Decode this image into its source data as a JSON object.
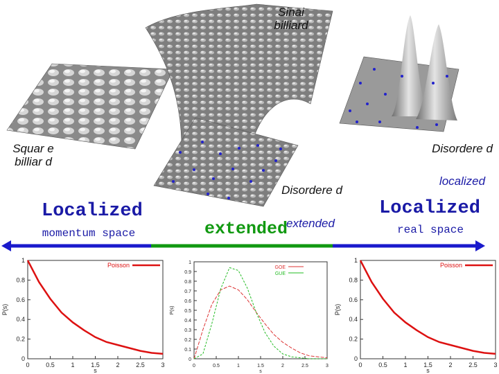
{
  "labels": {
    "sinai": "Sinai billiard",
    "square": "Squar e billiar d",
    "disordered_right": "Disordere d",
    "localized_right_italic": "localized",
    "disordered_center": "Disordere d",
    "extended_center_italic": "extended",
    "localized_left": "Localized",
    "momentum_space": "momentum space",
    "extended_big": "extended",
    "localized_right": "Localized",
    "real_space": "real space"
  },
  "chart_data": [
    {
      "type": "line",
      "xlabel": "s",
      "ylabel": "P(s)",
      "xlim": [
        0,
        3
      ],
      "ylim": [
        0,
        1
      ],
      "xticks": [
        "0",
        "0.5",
        "1",
        "1.5",
        "2",
        "2.5",
        "3"
      ],
      "yticks": [
        "0",
        "0.2",
        "0.4",
        "0.6",
        "0.8",
        "1"
      ],
      "legend": [
        "Poisson"
      ],
      "series": [
        {
          "name": "Poisson",
          "color": "#dd1111",
          "x": [
            0,
            0.25,
            0.5,
            0.75,
            1,
            1.25,
            1.5,
            1.75,
            2,
            2.25,
            2.5,
            2.75,
            3
          ],
          "y": [
            1,
            0.78,
            0.61,
            0.47,
            0.37,
            0.29,
            0.22,
            0.17,
            0.14,
            0.11,
            0.08,
            0.06,
            0.05
          ]
        }
      ]
    },
    {
      "type": "line",
      "xlabel": "s",
      "ylabel": "P(s)",
      "xlim": [
        0,
        3
      ],
      "ylim": [
        0,
        1
      ],
      "xticks": [
        "0",
        "0.5",
        "1",
        "1.5",
        "2",
        "2.5",
        "3"
      ],
      "yticks": [
        "0",
        "0.1",
        "0.2",
        "0.3",
        "0.4",
        "0.5",
        "0.6",
        "0.7",
        "0.8",
        "0.9",
        "1"
      ],
      "legend": [
        "GOE",
        "GUE"
      ],
      "series": [
        {
          "name": "GOE",
          "color": "#dd3333",
          "x": [
            0,
            0.2,
            0.4,
            0.6,
            0.8,
            1,
            1.2,
            1.4,
            1.6,
            1.8,
            2,
            2.2,
            2.4,
            2.6,
            2.8,
            3
          ],
          "y": [
            0,
            0.3,
            0.56,
            0.71,
            0.75,
            0.71,
            0.61,
            0.48,
            0.36,
            0.25,
            0.17,
            0.11,
            0.06,
            0.03,
            0.02,
            0.01
          ]
        },
        {
          "name": "GUE",
          "color": "#22bb22",
          "x": [
            0,
            0.2,
            0.4,
            0.6,
            0.8,
            1,
            1.2,
            1.4,
            1.6,
            1.8,
            2,
            2.2,
            2.4,
            2.6,
            2.8,
            3
          ],
          "y": [
            0,
            0.05,
            0.36,
            0.72,
            0.94,
            0.91,
            0.73,
            0.48,
            0.27,
            0.13,
            0.05,
            0.02,
            0.01,
            0,
            0,
            0
          ]
        }
      ]
    },
    {
      "type": "line",
      "xlabel": "s",
      "ylabel": "P(s)",
      "xlim": [
        0,
        3
      ],
      "ylim": [
        0,
        1
      ],
      "xticks": [
        "0",
        "0.5",
        "1",
        "1.5",
        "2",
        "2.5",
        "3"
      ],
      "yticks": [
        "0",
        "0.2",
        "0.4",
        "0.6",
        "0.8",
        "1"
      ],
      "legend": [
        "Poisson"
      ],
      "series": [
        {
          "name": "Poisson",
          "color": "#dd1111",
          "x": [
            0,
            0.25,
            0.5,
            0.75,
            1,
            1.25,
            1.5,
            1.75,
            2,
            2.25,
            2.5,
            2.75,
            3
          ],
          "y": [
            1,
            0.78,
            0.61,
            0.47,
            0.37,
            0.29,
            0.22,
            0.17,
            0.14,
            0.11,
            0.08,
            0.06,
            0.05
          ]
        }
      ]
    }
  ]
}
